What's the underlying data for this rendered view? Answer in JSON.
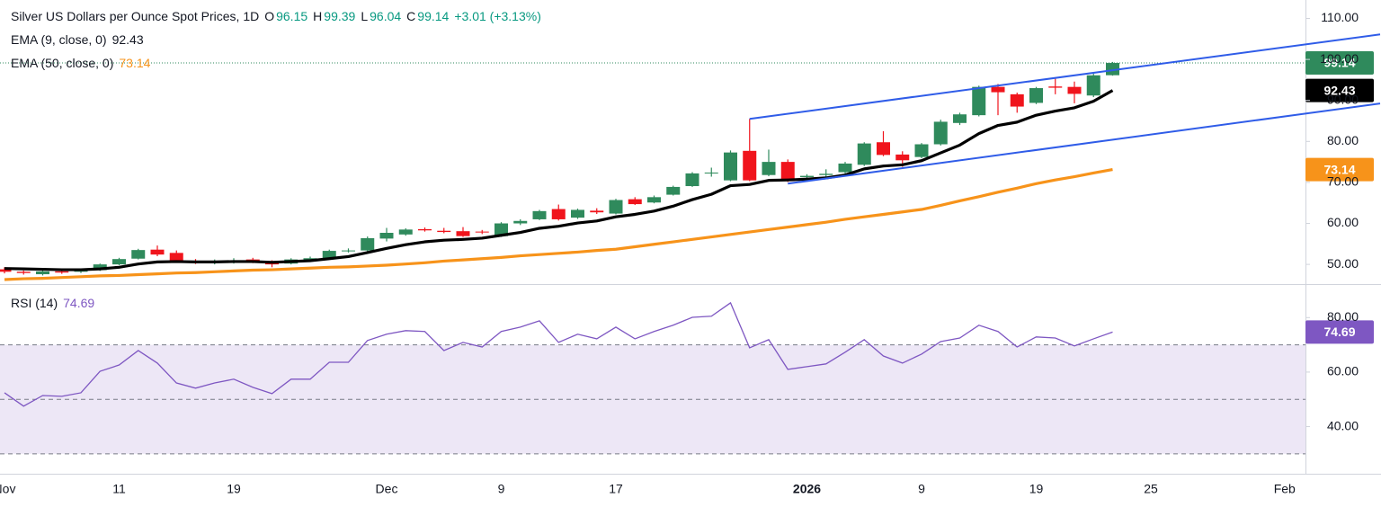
{
  "chart_data": [
    {
      "type": "candlestick",
      "title": "Silver US Dollars per Ounce Spot Prices, 1D",
      "ohlc_letters": [
        "O",
        "H",
        "L",
        "C"
      ],
      "change": "+3.01 (+3.13%)",
      "categories": [
        "Nov",
        null,
        null,
        null,
        null,
        null,
        "11",
        null,
        null,
        null,
        null,
        null,
        "19",
        null,
        null,
        null,
        null,
        null,
        null,
        null,
        "Dec",
        null,
        null,
        null,
        null,
        null,
        "9",
        null,
        null,
        null,
        null,
        null,
        "17",
        null,
        null,
        null,
        null,
        null,
        null,
        null,
        null,
        null,
        "2026",
        null,
        null,
        null,
        null,
        null,
        "9",
        null,
        null,
        null,
        null,
        null,
        "19",
        null,
        null,
        null,
        null,
        null,
        "25",
        null,
        null,
        null,
        null,
        null,
        null,
        "Feb"
      ],
      "open": [
        48.8,
        48.2,
        47.6,
        48.3,
        48.2,
        48.6,
        50.0,
        51.4,
        53.6,
        52.8,
        50.9,
        50.5,
        50.5,
        51.2,
        50.6,
        50.2,
        51.0,
        51.5,
        53.3,
        53.4,
        56.3,
        57.3,
        58.6,
        58.2,
        58.1,
        58.0,
        56.9,
        60.0,
        61.0,
        63.5,
        61.4,
        63.1,
        62.4,
        65.9,
        65.1,
        67.0,
        69.1,
        72.3,
        70.5,
        77.7,
        71.8,
        75.0,
        71.3,
        71.8,
        72.5,
        74.3,
        79.8,
        76.8,
        76.2,
        79.3,
        84.5,
        86.4,
        93.3,
        91.5,
        89.4,
        93.4,
        93.3,
        91.2,
        96.15,
        null,
        null,
        null,
        null,
        null,
        null,
        null,
        null,
        null
      ],
      "high": [
        49.3,
        48.5,
        48.5,
        48.6,
        48.9,
        50.2,
        51.6,
        53.8,
        54.6,
        53.4,
        51.3,
        51.2,
        51.5,
        51.6,
        51.0,
        51.5,
        51.9,
        53.6,
        53.9,
        56.8,
        58.9,
        58.8,
        59.0,
        58.9,
        59.1,
        58.4,
        60.3,
        61.0,
        63.3,
        64.6,
        63.6,
        63.7,
        66.0,
        66.4,
        66.8,
        69.2,
        72.5,
        73.6,
        77.8,
        85.5,
        78.0,
        75.6,
        72.0,
        73.2,
        75.0,
        79.8,
        82.5,
        77.6,
        79.6,
        85.3,
        87.0,
        93.6,
        94.0,
        91.9,
        93.3,
        95.3,
        94.6,
        96.5,
        99.39,
        null,
        null,
        null,
        null,
        null,
        null,
        null,
        null,
        null
      ],
      "low": [
        47.8,
        47.5,
        47.3,
        47.7,
        47.9,
        48.4,
        49.8,
        51.2,
        52.0,
        50.6,
        50.1,
        50.0,
        50.2,
        50.3,
        49.3,
        50.0,
        50.7,
        51.3,
        52.9,
        53.1,
        55.6,
        57.0,
        58.0,
        57.6,
        56.7,
        57.4,
        56.7,
        59.6,
        60.8,
        60.7,
        61.1,
        62.3,
        62.2,
        64.5,
        64.9,
        66.8,
        68.9,
        71.4,
        70.3,
        70.3,
        71.5,
        70.1,
        70.8,
        71.2,
        72.2,
        74.0,
        76.4,
        73.8,
        75.9,
        79.0,
        84.0,
        86.1,
        86.4,
        87.0,
        89.1,
        91.5,
        89.3,
        90.8,
        96.04,
        null,
        null,
        null,
        null,
        null,
        null,
        null,
        null,
        null
      ],
      "close": [
        48.2,
        47.9,
        48.3,
        48.0,
        48.6,
        50.0,
        51.3,
        53.5,
        52.4,
        50.8,
        50.4,
        50.6,
        51.0,
        50.6,
        50.0,
        51.2,
        51.5,
        53.3,
        53.4,
        56.4,
        57.7,
        58.5,
        58.3,
        57.9,
        56.9,
        57.8,
        60.0,
        60.6,
        63.0,
        61.0,
        63.3,
        62.7,
        65.7,
        64.7,
        66.4,
        68.9,
        72.2,
        72.4,
        77.3,
        70.5,
        75.0,
        70.3,
        71.6,
        72.1,
        74.6,
        79.5,
        76.7,
        75.4,
        79.3,
        84.8,
        86.6,
        93.3,
        92.0,
        88.5,
        93.0,
        93.1,
        91.6,
        96.13,
        99.14,
        null,
        null,
        null,
        null,
        null,
        null,
        null,
        null,
        null
      ],
      "up_color": "#2f8a5c",
      "down_color": "#f0141c",
      "series": [
        {
          "name": "EMA (9, close, 0)",
          "color": "#000000",
          "values": [
            49.0,
            48.9,
            48.8,
            48.7,
            48.7,
            48.9,
            49.3,
            50.1,
            50.6,
            50.7,
            50.6,
            50.6,
            50.7,
            50.7,
            50.5,
            50.7,
            50.9,
            51.4,
            51.9,
            52.9,
            53.9,
            54.8,
            55.5,
            55.9,
            56.1,
            56.4,
            57.1,
            57.8,
            58.8,
            59.3,
            60.1,
            60.6,
            61.6,
            62.2,
            63.0,
            64.2,
            65.8,
            67.1,
            69.2,
            69.5,
            70.5,
            70.6,
            70.8,
            71.1,
            71.8,
            73.3,
            74.0,
            74.3,
            75.3,
            77.2,
            79.1,
            81.9,
            83.9,
            84.7,
            86.4,
            87.4,
            88.2,
            89.8,
            92.43,
            null,
            null,
            null,
            null,
            null,
            null,
            null,
            null,
            null
          ]
        },
        {
          "name": "EMA (50, close, 0)",
          "color": "#f7931a",
          "values": [
            46.3,
            46.5,
            46.6,
            46.8,
            47.0,
            47.2,
            47.3,
            47.5,
            47.7,
            47.9,
            48.0,
            48.2,
            48.4,
            48.6,
            48.7,
            48.9,
            49.1,
            49.3,
            49.4,
            49.6,
            49.8,
            50.1,
            50.4,
            50.8,
            51.1,
            51.4,
            51.7,
            52.1,
            52.4,
            52.7,
            53.0,
            53.4,
            53.7,
            54.3,
            54.9,
            55.5,
            56.1,
            56.7,
            57.3,
            57.9,
            58.5,
            59.1,
            59.7,
            60.3,
            61.0,
            61.6,
            62.2,
            62.8,
            63.4,
            64.4,
            65.5,
            66.5,
            67.6,
            68.6,
            69.7,
            70.6,
            71.4,
            72.3,
            73.14,
            null,
            null,
            null,
            null,
            null,
            null,
            null,
            null,
            null
          ]
        }
      ],
      "channel": {
        "color": "#2f5ce8",
        "upper": {
          "x": [
            39,
            72
          ],
          "y": [
            85.5,
            106.1
          ]
        },
        "lower": {
          "x": [
            41,
            72
          ],
          "y": [
            69.7,
            89.25
          ]
        }
      },
      "ylim": [
        45.2,
        114.5
      ],
      "yticks": [
        {
          "value": 50,
          "label": "50.00"
        },
        {
          "value": 60,
          "label": "60.00"
        },
        {
          "value": 70,
          "label": "70.00"
        },
        {
          "value": 80,
          "label": "80.00"
        },
        {
          "value": 90,
          "label": "90.00"
        },
        {
          "value": 100,
          "label": "100.00"
        },
        {
          "value": 110,
          "label": "110.00"
        }
      ],
      "grid": false
    },
    {
      "type": "line",
      "series": [
        {
          "name": "RSI (14)",
          "color": "#7e57c2",
          "values": [
            52.4,
            47.5,
            51.4,
            51.1,
            52.4,
            60.3,
            62.6,
            67.9,
            63.3,
            56.0,
            54.1,
            56.0,
            57.4,
            54.4,
            52.1,
            57.4,
            57.4,
            63.6,
            63.6,
            71.6,
            73.9,
            75.2,
            74.9,
            67.9,
            70.9,
            69.2,
            74.9,
            76.5,
            78.8,
            70.9,
            73.9,
            72.2,
            76.5,
            72.2,
            74.9,
            77.2,
            80.1,
            80.5,
            85.4,
            68.9,
            71.9,
            61.0,
            62.0,
            63.0,
            67.3,
            71.9,
            65.9,
            63.3,
            66.6,
            71.2,
            72.5,
            77.2,
            74.9,
            69.2,
            72.9,
            72.5,
            69.6,
            72.2,
            74.69,
            null,
            null,
            null,
            null,
            null,
            null,
            null,
            null,
            null
          ]
        }
      ],
      "levels": [
        30,
        50,
        70
      ],
      "band": [
        30,
        70
      ],
      "band_color": "#ede7f6",
      "ylim": [
        22.7,
        92.3
      ],
      "yticks": [
        {
          "value": 40,
          "label": "40.00"
        },
        {
          "value": 60,
          "label": "60.00"
        },
        {
          "value": 80,
          "label": "80.00"
        }
      ],
      "grid": false
    }
  ]
}
